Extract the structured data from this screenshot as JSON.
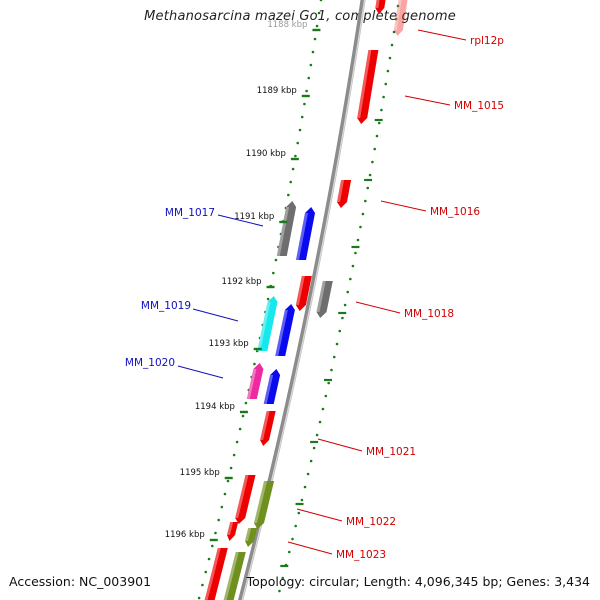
{
  "title": "Methanosarcina mazei Go1, complete genome",
  "footer": {
    "accession": "Accession: NC_003901",
    "summary": "Topology: circular; Length: 4,096,345 bp; Genes: 3,434"
  },
  "colors": {
    "backbone": "#8c8c8c",
    "tick": "#1a7a1a",
    "forward_label": "#d10000",
    "reverse_label": "#1010c0",
    "gene_red": "#ee0000",
    "gene_blue": "#0a0aee",
    "gene_gray": "#6e6e6e",
    "gene_cyan": "#16e8ee",
    "gene_magenta": "#ee2aa0",
    "gene_olive": "#6f8f1f"
  },
  "ticks": [
    "1188 kbp",
    "1189 kbp",
    "1190 kbp",
    "1191 kbp",
    "1192 kbp",
    "1193 kbp",
    "1194 kbp",
    "1195 kbp",
    "1196 kbp"
  ],
  "gene_labels": [
    {
      "text": "rpl12p",
      "strand": "forward"
    },
    {
      "text": "MM_1015",
      "strand": "forward"
    },
    {
      "text": "MM_1016",
      "strand": "forward"
    },
    {
      "text": "MM_1017",
      "strand": "reverse"
    },
    {
      "text": "MM_1018",
      "strand": "forward"
    },
    {
      "text": "MM_1019",
      "strand": "reverse"
    },
    {
      "text": "MM_1020",
      "strand": "reverse"
    },
    {
      "text": "MM_1021",
      "strand": "forward"
    },
    {
      "text": "MM_1022",
      "strand": "forward"
    },
    {
      "text": "MM_1023",
      "strand": "forward"
    }
  ]
}
